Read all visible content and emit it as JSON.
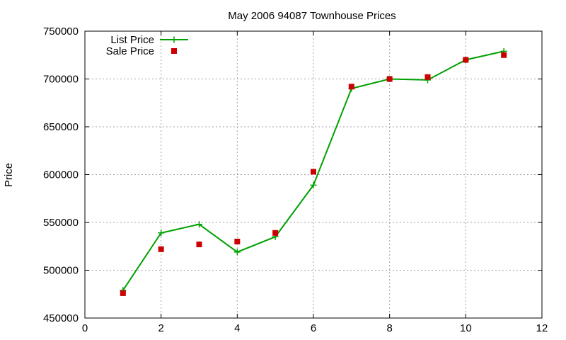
{
  "chart_data": {
    "type": "line",
    "title": "May 2006 94087 Townhouse Prices",
    "xlabel": "",
    "ylabel": "Price",
    "xlim": [
      0,
      12
    ],
    "ylim": [
      450000,
      750000
    ],
    "xticks": [
      0,
      2,
      4,
      6,
      8,
      10,
      12
    ],
    "yticks": [
      450000,
      500000,
      550000,
      600000,
      650000,
      700000,
      750000
    ],
    "grid": true,
    "legend_position": "top-left",
    "series": [
      {
        "name": "List Price",
        "style": "lines+plus-markers",
        "color": "#00a000",
        "x": [
          1,
          2,
          3,
          4,
          5,
          6,
          7,
          8,
          9,
          10,
          11
        ],
        "y": [
          479000,
          539000,
          548000,
          519000,
          535000,
          589000,
          690000,
          700000,
          699000,
          720000,
          729000
        ]
      },
      {
        "name": "Sale Price",
        "style": "square-markers",
        "color": "#cc0000",
        "x": [
          1,
          2,
          3,
          4,
          5,
          6,
          7,
          8,
          9,
          10,
          11
        ],
        "y": [
          476000,
          522000,
          527000,
          530000,
          539000,
          603000,
          692000,
          700000,
          702000,
          720000,
          725000
        ]
      }
    ]
  }
}
